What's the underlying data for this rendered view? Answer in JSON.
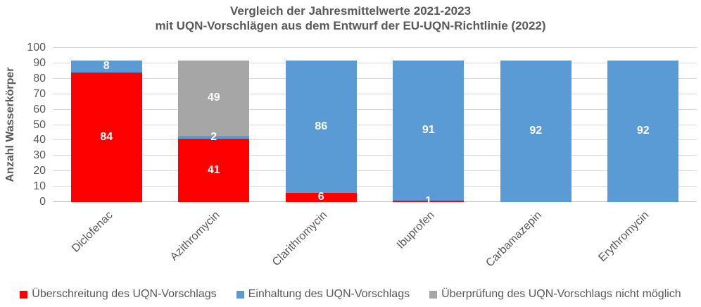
{
  "title": {
    "line1": "Vergleich der Jahresmittelwerte 2021-2023",
    "line2": "mit UQN-Vorschlägen aus dem Entwurf der EU-UQN-Richtlinie (2022)"
  },
  "chart_data": {
    "type": "bar",
    "stacked": true,
    "title": "Vergleich der Jahresmittelwerte 2021-2023 mit UQN-Vorschlägen aus dem Entwurf der EU-UQN-Richtlinie (2022)",
    "xlabel": "",
    "ylabel": "Anzahl Wasserkörper",
    "ylim": [
      0,
      100
    ],
    "ytick_step": 10,
    "grid": true,
    "legend_position": "bottom",
    "categories": [
      "Diclofenac",
      "Azithromycin",
      "Clarithromycin",
      "Ibuprofen",
      "Carbamazepin",
      "Erythromycin"
    ],
    "series": [
      {
        "name": "Überschreitung des UQN-Vorschlags",
        "color": "#FF0000",
        "values": [
          84,
          41,
          6,
          1,
          0,
          0
        ]
      },
      {
        "name": "Einhaltung des UQN-Vorschlags",
        "color": "#5B9BD5",
        "values": [
          8,
          2,
          86,
          91,
          92,
          92
        ]
      },
      {
        "name": "Überprüfung des UQN-Vorschlags nicht möglich",
        "color": "#A6A6A6",
        "values": [
          0,
          49,
          0,
          0,
          0,
          0
        ]
      }
    ]
  }
}
